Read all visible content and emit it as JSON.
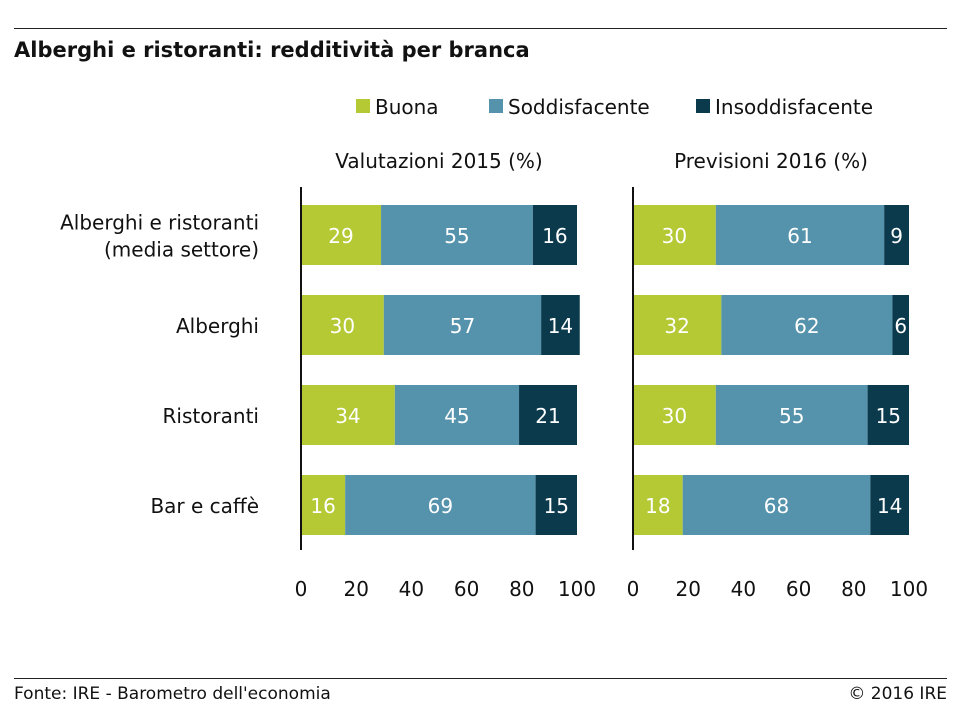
{
  "header": {
    "title": "Alberghi e ristoranti: redditività per branca"
  },
  "footer": {
    "source": "Fonte: IRE - Barometro dell'economia",
    "copyright": "© 2016 IRE"
  },
  "chart_data": {
    "type": "bar",
    "orientation": "horizontal",
    "stacked": true,
    "legend": {
      "placement": "top",
      "items": [
        {
          "name": "Buona",
          "color": "#b5c935"
        },
        {
          "name": "Soddisfacente",
          "color": "#5592ab"
        },
        {
          "name": "Insoddisfacente",
          "color": "#0b3a4d"
        }
      ]
    },
    "categories": [
      [
        "Alberghi e ristoranti",
        "(media settore)"
      ],
      [
        "Alberghi"
      ],
      [
        "Ristoranti"
      ],
      [
        "Bar e caffè"
      ]
    ],
    "xlim": [
      0,
      100
    ],
    "xticks": [
      0,
      20,
      40,
      60,
      80,
      100
    ],
    "grid": false,
    "panels": [
      {
        "title": "Valutazioni 2015 (%)",
        "series": [
          {
            "name": "Buona",
            "values": [
              29,
              30,
              34,
              16
            ]
          },
          {
            "name": "Soddisfacente",
            "values": [
              55,
              57,
              45,
              69
            ]
          },
          {
            "name": "Insoddisfacente",
            "values": [
              16,
              14,
              21,
              15
            ]
          }
        ]
      },
      {
        "title": "Previsioni 2016 (%)",
        "series": [
          {
            "name": "Buona",
            "values": [
              30,
              32,
              30,
              18
            ]
          },
          {
            "name": "Soddisfacente",
            "values": [
              61,
              62,
              55,
              68
            ]
          },
          {
            "name": "Insoddisfacente",
            "values": [
              9,
              6,
              15,
              14
            ]
          }
        ]
      }
    ]
  }
}
